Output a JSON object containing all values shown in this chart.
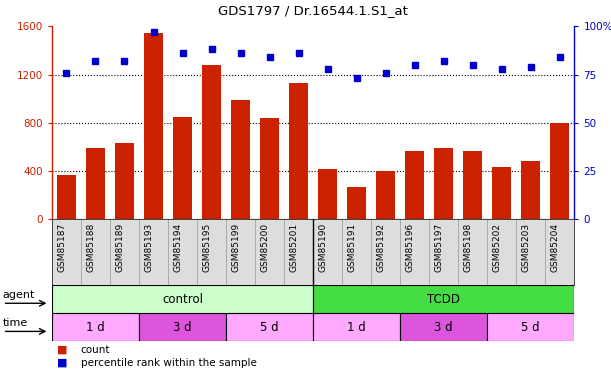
{
  "title": "GDS1797 / Dr.16544.1.S1_at",
  "samples": [
    "GSM85187",
    "GSM85188",
    "GSM85189",
    "GSM85193",
    "GSM85194",
    "GSM85195",
    "GSM85199",
    "GSM85200",
    "GSM85201",
    "GSM85190",
    "GSM85191",
    "GSM85192",
    "GSM85196",
    "GSM85197",
    "GSM85198",
    "GSM85202",
    "GSM85203",
    "GSM85204"
  ],
  "counts": [
    370,
    590,
    630,
    1540,
    850,
    1280,
    990,
    840,
    1130,
    420,
    270,
    400,
    570,
    590,
    570,
    430,
    480,
    800
  ],
  "percentiles": [
    76,
    82,
    82,
    97,
    86,
    88,
    86,
    84,
    86,
    78,
    73,
    76,
    80,
    82,
    80,
    78,
    79,
    84
  ],
  "bar_color": "#cc2200",
  "dot_color": "#0000cc",
  "left_axis_color": "#cc2200",
  "right_axis_color": "#0000cc",
  "ylim_left": [
    0,
    1600
  ],
  "ylim_right": [
    0,
    100
  ],
  "yticks_left": [
    0,
    400,
    800,
    1200,
    1600
  ],
  "yticks_right": [
    0,
    25,
    50,
    75,
    100
  ],
  "ytick_labels_right": [
    "0",
    "25",
    "50",
    "75",
    "100%"
  ],
  "agent_groups": [
    {
      "label": "control",
      "start": 0,
      "end": 9,
      "color": "#ccffcc"
    },
    {
      "label": "TCDD",
      "start": 9,
      "end": 18,
      "color": "#44dd44"
    }
  ],
  "time_groups": [
    {
      "label": "1 d",
      "start": 0,
      "end": 3,
      "color": "#ffaaff"
    },
    {
      "label": "3 d",
      "start": 3,
      "end": 6,
      "color": "#dd55dd"
    },
    {
      "label": "5 d",
      "start": 6,
      "end": 9,
      "color": "#ffaaff"
    },
    {
      "label": "1 d",
      "start": 9,
      "end": 12,
      "color": "#ffaaff"
    },
    {
      "label": "3 d",
      "start": 12,
      "end": 15,
      "color": "#dd55dd"
    },
    {
      "label": "5 d",
      "start": 15,
      "end": 18,
      "color": "#ffaaff"
    }
  ],
  "legend_count_label": "count",
  "legend_pct_label": "percentile rank within the sample",
  "agent_label": "agent",
  "time_label": "time",
  "background_color": "#ffffff",
  "plot_bg_color": "#ffffff",
  "xticklabel_bg": "#dddddd"
}
